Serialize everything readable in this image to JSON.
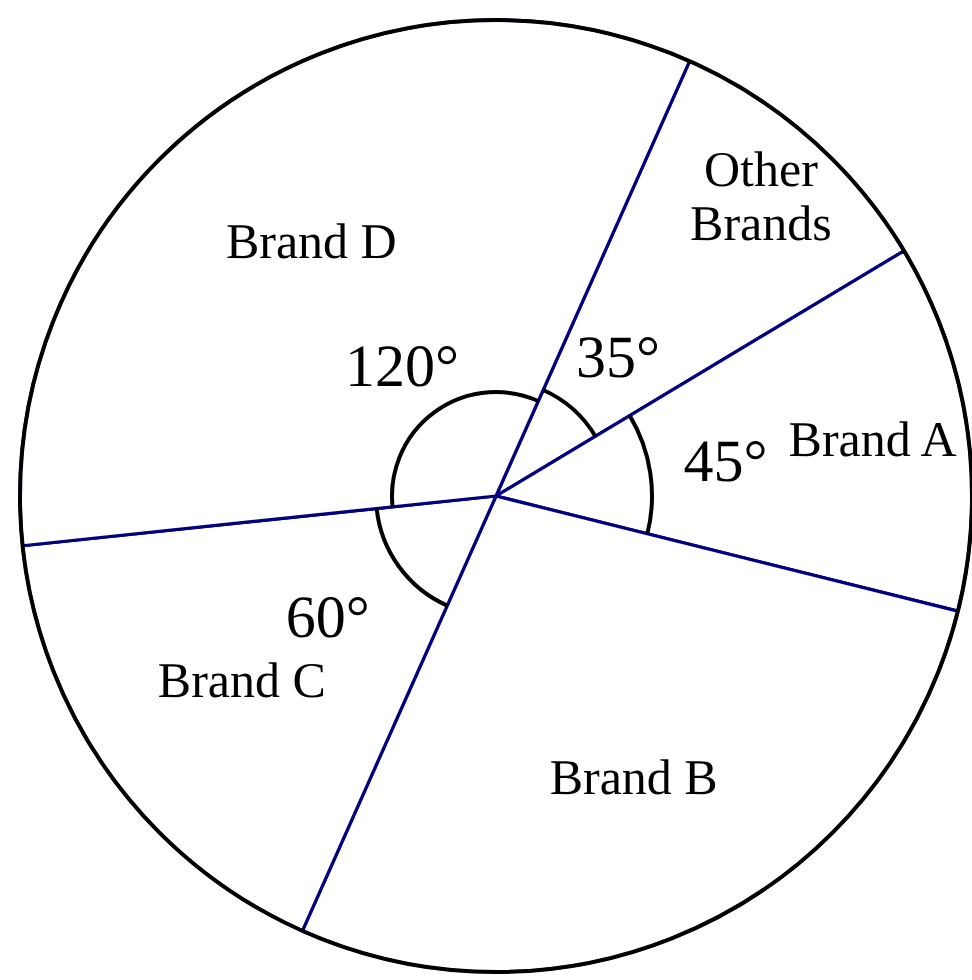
{
  "chart_data": {
    "type": "pie",
    "categories": [
      "Other Brands",
      "Brand A",
      "Brand B",
      "Brand C",
      "Brand D"
    ],
    "values": [
      35,
      45,
      100,
      60,
      120
    ],
    "colors": [
      "#ffffff",
      "#ffffff",
      "#ffffff",
      "#ffffff",
      "#ffffff"
    ],
    "value_labels": [
      "35°",
      "45°",
      null,
      "60°",
      "120°"
    ]
  }
}
